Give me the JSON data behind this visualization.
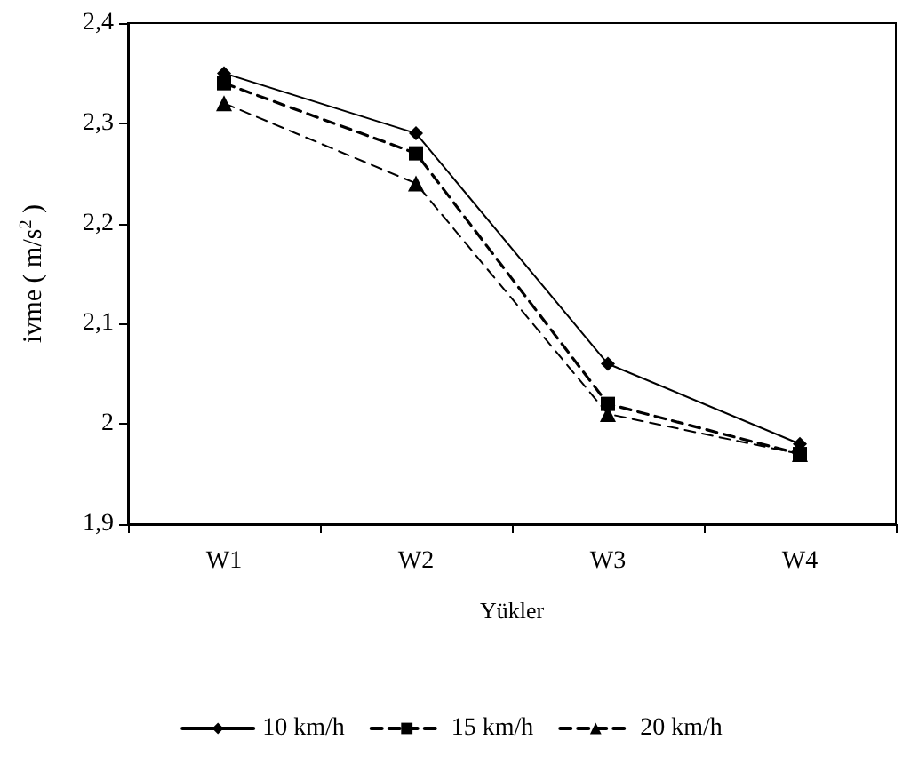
{
  "chart_data": {
    "type": "line",
    "xlabel": "Yükler",
    "ylabel": "ivme ( m/s$^{2}$ )",
    "categories": [
      "W1",
      "W2",
      "W3",
      "W4"
    ],
    "series": [
      {
        "name": "10 km/h",
        "color": "#000000",
        "marker": "diamond",
        "line_style": "solid",
        "values": [
          2.35,
          2.29,
          2.06,
          1.98
        ]
      },
      {
        "name": "15 km/h",
        "color": "#000000",
        "marker": "square",
        "line_style": "dashed",
        "values": [
          2.34,
          2.27,
          2.02,
          1.97
        ]
      },
      {
        "name": "20 km/h",
        "color": "#000000",
        "marker": "triangle",
        "line_style": "dashed",
        "values": [
          2.32,
          2.24,
          2.01,
          1.97
        ]
      }
    ],
    "ylim": [
      1.9,
      2.4
    ],
    "yticks": [
      {
        "value": 1.9,
        "label": "1,9"
      },
      2,
      {
        "value": 2.1,
        "label": "2,1"
      },
      {
        "value": 2.2,
        "label": "2,2"
      },
      {
        "value": 2.3,
        "label": "2,3"
      },
      {
        "value": 2.4,
        "label": "2,4"
      }
    ],
    "grid": false,
    "legend": "bottom"
  }
}
